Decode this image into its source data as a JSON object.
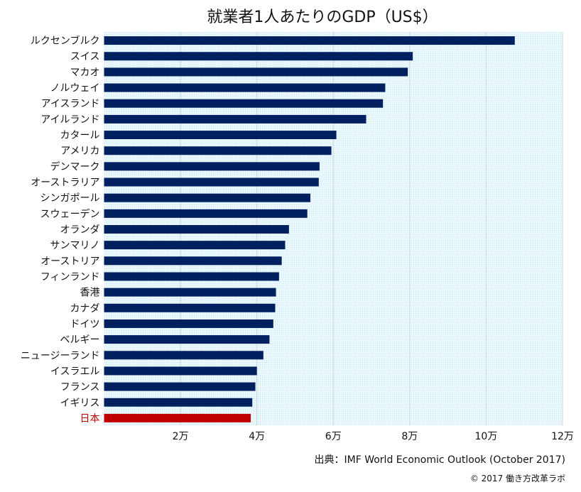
{
  "chart_data": {
    "type": "bar",
    "orientation": "horizontal",
    "title": "就業者1人あたりのGDP（US$）",
    "categories": [
      "ルクセンブルク",
      "スイス",
      "マカオ",
      "ノルウェイ",
      "アイスランド",
      "アイルランド",
      "カタール",
      "アメリカ",
      "デンマーク",
      "オーストラリア",
      "シンガポール",
      "スウェーデン",
      "オランダ",
      "サンマリノ",
      "オーストリア",
      "フィンランド",
      "香港",
      "カナダ",
      "ドイツ",
      "ベルギー",
      "ニュージーランド",
      "イスラエル",
      "フランス",
      "イギリス",
      "日本"
    ],
    "values": [
      107500,
      80800,
      79500,
      73600,
      73000,
      68600,
      60800,
      59500,
      56400,
      56200,
      54000,
      53200,
      48400,
      47400,
      46500,
      45800,
      45000,
      44800,
      44300,
      43300,
      41700,
      40000,
      39600,
      38800,
      38400
    ],
    "highlight": "日本",
    "xlim": [
      0,
      120000
    ],
    "ticks": [
      20000,
      40000,
      60000,
      80000,
      100000,
      120000
    ],
    "tick_labels": [
      "2万",
      "4万",
      "6万",
      "8万",
      "10万",
      "12万"
    ],
    "grid": true,
    "colors": {
      "bar": "#002060",
      "highlight": "#c00000",
      "highlight_label": "#c00000",
      "plot_bg": "#e6f6fd",
      "grid": "#cfd8dc"
    },
    "source": "出典：IMF World Economic Outlook (October 2017)",
    "credit": "© 2017 働き方改革ラボ"
  }
}
